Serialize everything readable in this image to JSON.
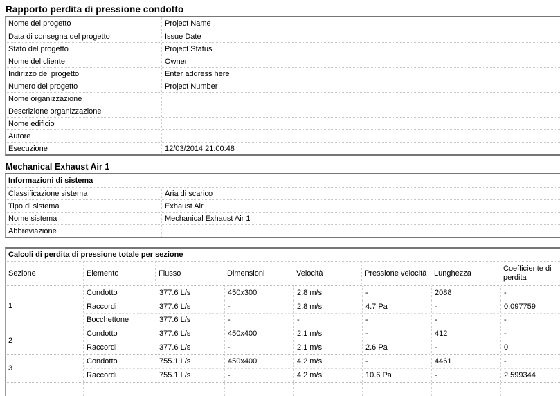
{
  "page": {
    "title": "Rapporto perdita di pressione condotto",
    "system_title": "Mechanical Exhaust Air 1"
  },
  "project_info": {
    "rows": [
      {
        "label": "Nome del progetto",
        "value": "Project Name"
      },
      {
        "label": "Data di consegna del progetto",
        "value": "Issue Date"
      },
      {
        "label": "Stato del progetto",
        "value": "Project Status"
      },
      {
        "label": "Nome del cliente",
        "value": "Owner"
      },
      {
        "label": "Indirizzo del progetto",
        "value": "Enter address here"
      },
      {
        "label": "Numero del progetto",
        "value": "Project Number"
      },
      {
        "label": "Nome organizzazione",
        "value": ""
      },
      {
        "label": "Descrizione organizzazione",
        "value": ""
      },
      {
        "label": "Nome edificio",
        "value": ""
      },
      {
        "label": "Autore",
        "value": ""
      },
      {
        "label": "Esecuzione",
        "value": "12/03/2014 21:00:48"
      }
    ]
  },
  "system_info": {
    "header": "Informazioni di sistema",
    "rows": [
      {
        "label": "Classificazione sistema",
        "value": "Aria di scarico"
      },
      {
        "label": "Tipo di sistema",
        "value": "Exhaust Air"
      },
      {
        "label": "Nome sistema",
        "value": "Mechanical Exhaust Air 1"
      },
      {
        "label": "Abbreviazione",
        "value": ""
      }
    ]
  },
  "pressure_loss": {
    "header": "Calcoli di perdita di pressione totale per sezione",
    "columns": [
      "Sezione",
      "Elemento",
      "Flusso",
      "Dimensioni",
      "Velocità",
      "Pressione velocità",
      "Lunghezza",
      "Coefficiente di perdita"
    ],
    "sections": [
      {
        "section": "1",
        "rows": [
          [
            "Condotto",
            "377.6 L/s",
            "450x300",
            "2.8 m/s",
            "-",
            "2088",
            "-"
          ],
          [
            "Raccordi",
            "377.6 L/s",
            "-",
            "2.8 m/s",
            "4.7 Pa",
            "-",
            "0.097759"
          ],
          [
            "Bocchettone",
            "377.6 L/s",
            "-",
            "-",
            "-",
            "-",
            "-"
          ]
        ]
      },
      {
        "section": "2",
        "rows": [
          [
            "Condotto",
            "377.6 L/s",
            "450x400",
            "2.1 m/s",
            "-",
            "412",
            "-"
          ],
          [
            "Raccordi",
            "377.6 L/s",
            "-",
            "2.1 m/s",
            "2.6 Pa",
            "-",
            "0"
          ]
        ]
      },
      {
        "section": "3",
        "rows": [
          [
            "Condotto",
            "755.1 L/s",
            "450x400",
            "4.2 m/s",
            "-",
            "4461",
            "-"
          ],
          [
            "Raccordi",
            "755.1 L/s",
            "-",
            "4.2 m/s",
            "10.6 Pa",
            "-",
            "2.599344"
          ]
        ]
      }
    ]
  },
  "colors": {
    "border_dark": "#767676",
    "border_light_dotted": "#c7c7c7",
    "text": "#000000",
    "background": "#ffffff"
  }
}
